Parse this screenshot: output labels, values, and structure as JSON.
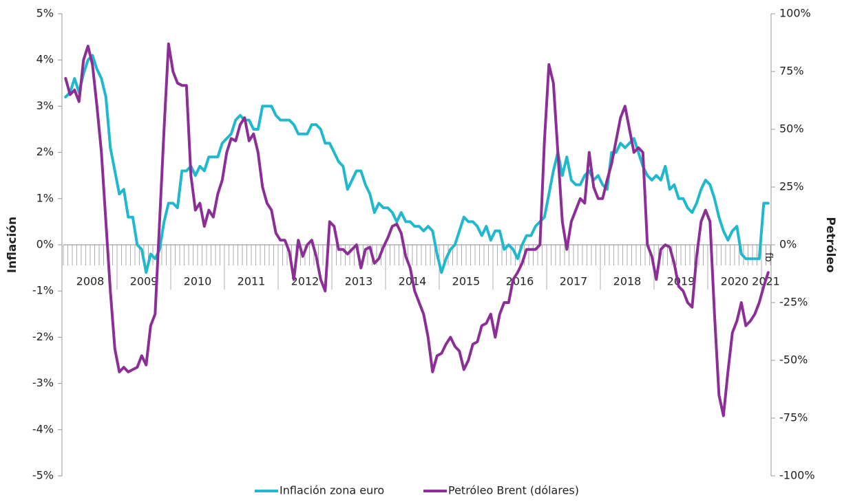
{
  "chart_data": {
    "type": "line",
    "year_labels": [
      "2008",
      "2009",
      "2010",
      "2011",
      "2012",
      "2013",
      "2014",
      "2015",
      "2016",
      "2017",
      "2018",
      "2019",
      "2020",
      "2021"
    ],
    "categories": [
      null,
      null,
      null,
      null,
      null,
      null,
      null,
      null,
      null,
      null,
      null,
      null,
      null,
      null,
      null,
      null,
      null,
      null,
      null,
      null,
      null,
      null,
      null,
      null,
      null,
      null,
      null,
      null,
      null,
      null,
      null,
      null,
      null,
      null,
      null,
      null,
      null,
      null,
      null,
      null,
      null,
      null,
      null,
      null,
      null,
      null,
      null,
      null,
      null,
      null,
      null,
      null,
      null,
      null,
      null,
      null,
      null,
      null,
      null,
      null,
      null,
      null,
      null,
      null,
      null,
      null,
      null,
      null,
      null,
      null,
      null,
      null,
      null,
      null,
      null,
      null,
      null,
      null,
      null,
      null,
      null,
      null,
      null,
      null,
      null,
      null,
      null,
      null,
      null,
      null,
      null,
      null,
      null,
      null,
      null,
      null,
      null,
      null,
      null,
      null,
      null,
      null,
      null,
      null,
      null,
      null,
      null,
      null,
      null,
      null,
      null,
      null,
      null,
      null,
      null,
      null,
      null,
      null,
      null,
      null,
      null,
      null,
      null,
      null,
      null,
      null,
      null,
      null,
      null,
      null,
      null,
      null,
      null,
      null,
      null,
      null,
      null,
      null,
      null,
      null,
      null,
      null,
      null,
      null,
      null,
      null,
      null,
      null,
      null,
      null,
      null,
      null,
      null,
      null,
      null,
      null,
      null,
      "fb"
    ],
    "series": [
      {
        "name": "Inflación zona euro",
        "color": "#1fb8cc",
        "axis": "y",
        "values": [
          3.2,
          3.3,
          3.6,
          3.3,
          3.7,
          4.0,
          4.1,
          3.8,
          3.6,
          3.2,
          2.1,
          1.6,
          1.1,
          1.2,
          0.6,
          0.6,
          0.0,
          -0.1,
          -0.6,
          -0.2,
          -0.3,
          -0.1,
          0.5,
          0.9,
          0.9,
          0.8,
          1.6,
          1.6,
          1.7,
          1.5,
          1.7,
          1.6,
          1.9,
          1.9,
          1.9,
          2.2,
          2.3,
          2.4,
          2.7,
          2.8,
          2.7,
          2.7,
          2.5,
          2.5,
          3.0,
          3.0,
          3.0,
          2.8,
          2.7,
          2.7,
          2.7,
          2.6,
          2.4,
          2.4,
          2.4,
          2.6,
          2.6,
          2.5,
          2.2,
          2.2,
          2.0,
          1.8,
          1.7,
          1.2,
          1.4,
          1.6,
          1.6,
          1.3,
          1.1,
          0.7,
          0.9,
          0.8,
          0.8,
          0.7,
          0.5,
          0.7,
          0.5,
          0.5,
          0.4,
          0.4,
          0.3,
          0.4,
          0.3,
          -0.2,
          -0.6,
          -0.3,
          -0.1,
          0.0,
          0.3,
          0.6,
          0.5,
          0.5,
          0.4,
          0.2,
          0.4,
          0.1,
          0.3,
          0.3,
          -0.1,
          0.0,
          -0.1,
          -0.3,
          0.0,
          0.2,
          0.2,
          0.4,
          0.5,
          0.6,
          1.1,
          1.6,
          2.0,
          1.5,
          1.9,
          1.4,
          1.3,
          1.3,
          1.5,
          1.6,
          1.4,
          1.5,
          1.3,
          1.2,
          2.0,
          2.0,
          2.2,
          2.1,
          2.2,
          2.3,
          2.0,
          1.7,
          1.5,
          1.4,
          1.5,
          1.4,
          1.7,
          1.2,
          1.3,
          1.0,
          1.0,
          0.8,
          0.7,
          0.9,
          1.2,
          1.4,
          1.3,
          1.0,
          0.6,
          0.3,
          0.1,
          0.3,
          0.4,
          -0.2,
          -0.3,
          -0.3,
          -0.3,
          -0.3,
          0.9,
          0.9
        ]
      },
      {
        "name": "Petróleo Brent (dólares)",
        "color": "#8b2f96",
        "axis": "y2",
        "values": [
          72,
          65,
          67,
          62,
          80,
          86,
          78,
          60,
          40,
          10,
          -20,
          -45,
          -55,
          -53,
          -55,
          -54,
          -53,
          -48,
          -52,
          -35,
          -30,
          10,
          50,
          87,
          75,
          70,
          69,
          69,
          30,
          15,
          18,
          8,
          15,
          12,
          22,
          28,
          40,
          46,
          45,
          52,
          55,
          45,
          48,
          40,
          25,
          18,
          15,
          5,
          2,
          2,
          -3,
          -15,
          2,
          -5,
          0,
          2,
          -5,
          -15,
          -20,
          10,
          8,
          -2,
          -2,
          -4,
          -2,
          0,
          -10,
          -2,
          -1,
          -8,
          -6,
          -1,
          3,
          8,
          9,
          5,
          -5,
          -10,
          -20,
          -25,
          -30,
          -40,
          -55,
          -48,
          -47,
          -43,
          -40,
          -44,
          -46,
          -54,
          -50,
          -43,
          -42,
          -35,
          -34,
          -30,
          -40,
          -30,
          -25,
          -25,
          -15,
          -12,
          -8,
          -2,
          -2,
          -2,
          0,
          45,
          78,
          70,
          40,
          10,
          -2,
          10,
          15,
          20,
          18,
          40,
          25,
          20,
          20,
          28,
          35,
          45,
          55,
          60,
          50,
          40,
          42,
          40,
          0,
          -5,
          -15,
          -2,
          0,
          -1,
          -8,
          -18,
          -20,
          -25,
          -27,
          -5,
          10,
          15,
          10,
          -30,
          -65,
          -74,
          -55,
          -38,
          -33,
          -25,
          -35,
          -33,
          -30,
          -25,
          -18,
          -12
        ]
      }
    ],
    "y_label": "Inflación",
    "y2_label": "Petróleo",
    "ylim": [
      -5,
      5
    ],
    "yticks": [
      {
        "value": -5,
        "label": "-5%"
      },
      {
        "value": -4,
        "label": "-4%"
      },
      {
        "value": -3,
        "label": "-3%"
      },
      {
        "value": -2,
        "label": "-2%"
      },
      {
        "value": -1,
        "label": "-1%"
      },
      {
        "value": 0,
        "label": "0%"
      },
      {
        "value": 1,
        "label": "1%"
      },
      {
        "value": 2,
        "label": "2%"
      },
      {
        "value": 3,
        "label": "3%"
      },
      {
        "value": 4,
        "label": "4%"
      },
      {
        "value": 5,
        "label": "5%"
      }
    ],
    "y2lim": [
      -100,
      100
    ],
    "y2ticks": [
      {
        "value": -100,
        "label": "-100%"
      },
      {
        "value": -75,
        "label": "-75%"
      },
      {
        "value": -50,
        "label": "-50%"
      },
      {
        "value": -25,
        "label": "-25%"
      },
      {
        "value": 0,
        "label": "0%"
      },
      {
        "value": 25,
        "label": "25%"
      },
      {
        "value": 50,
        "label": "50%"
      },
      {
        "value": 75,
        "label": "75%"
      },
      {
        "value": 100,
        "label": "100%"
      }
    ],
    "legend": "bottom"
  }
}
